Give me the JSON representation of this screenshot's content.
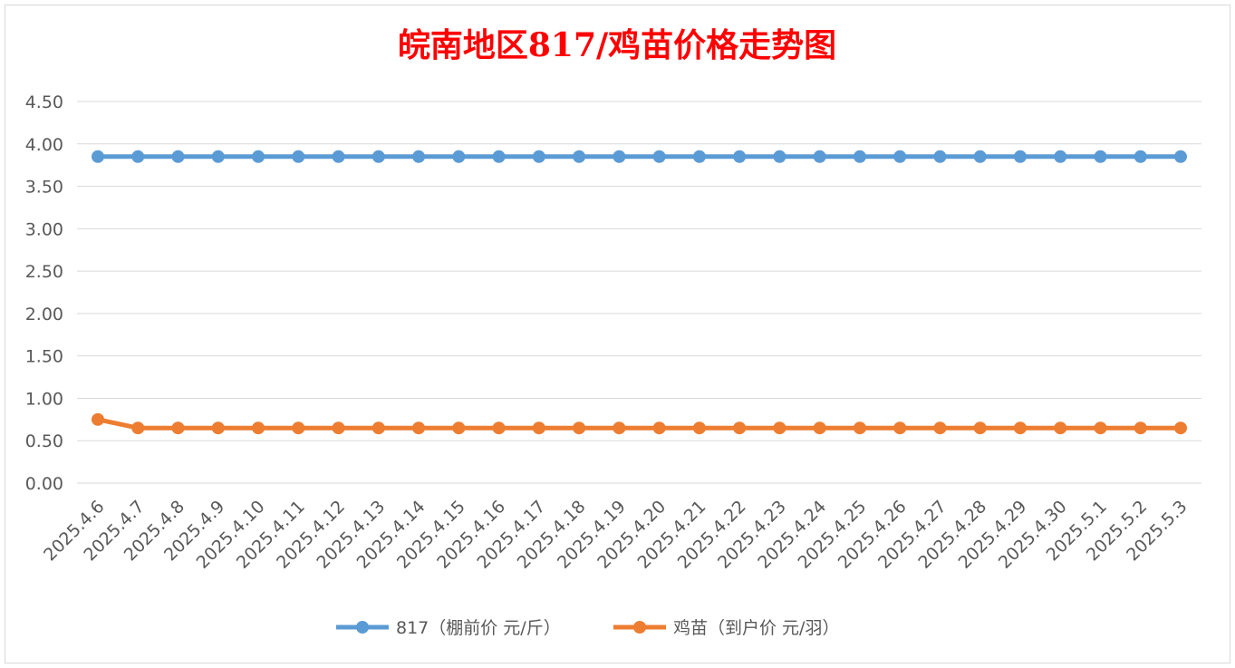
{
  "chart_data": {
    "type": "line",
    "title": "皖南地区817/鸡苗价格走势图",
    "x": [
      "2025.4.6",
      "2025.4.7",
      "2025.4.8",
      "2025.4.9",
      "2025.4.10",
      "2025.4.11",
      "2025.4.12",
      "2025.4.13",
      "2025.4.14",
      "2025.4.15",
      "2025.4.16",
      "2025.4.17",
      "2025.4.18",
      "2025.4.19",
      "2025.4.20",
      "2025.4.21",
      "2025.4.22",
      "2025.4.23",
      "2025.4.24",
      "2025.4.25",
      "2025.4.26",
      "2025.4.27",
      "2025.4.28",
      "2025.4.29",
      "2025.4.30",
      "2025.5.1",
      "2025.5.2",
      "2025.5.3"
    ],
    "series": [
      {
        "name": "817（棚前价 元/斤）",
        "color": "#5b9bd5",
        "values": [
          3.85,
          3.85,
          3.85,
          3.85,
          3.85,
          3.85,
          3.85,
          3.85,
          3.85,
          3.85,
          3.85,
          3.85,
          3.85,
          3.85,
          3.85,
          3.85,
          3.85,
          3.85,
          3.85,
          3.85,
          3.85,
          3.85,
          3.85,
          3.85,
          3.85,
          3.85,
          3.85,
          3.85
        ]
      },
      {
        "name": "鸡苗（到户价 元/羽）",
        "color": "#ed7d31",
        "values": [
          0.75,
          0.65,
          0.65,
          0.65,
          0.65,
          0.65,
          0.65,
          0.65,
          0.65,
          0.65,
          0.65,
          0.65,
          0.65,
          0.65,
          0.65,
          0.65,
          0.65,
          0.65,
          0.65,
          0.65,
          0.65,
          0.65,
          0.65,
          0.65,
          0.65,
          0.65,
          0.65,
          0.65
        ]
      }
    ],
    "yticks": [
      "0.00",
      "0.50",
      "1.00",
      "1.50",
      "2.00",
      "2.50",
      "3.00",
      "3.50",
      "4.00",
      "4.50"
    ],
    "ylim": [
      0,
      4.5
    ],
    "grid": true,
    "legend_position": "bottom",
    "title_color": "#ff0000"
  }
}
